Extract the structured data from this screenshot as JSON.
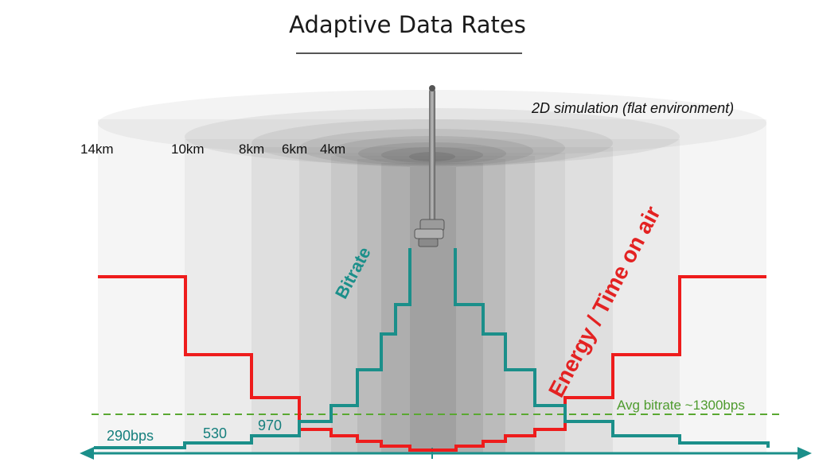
{
  "title": "Adaptive Data Rates",
  "simulation_note": "2D simulation (flat environment)",
  "distance_labels": [
    "14km",
    "10km",
    "8km",
    "6km",
    "4km"
  ],
  "diagram_labels": {
    "bitrate": "Bitrate",
    "energy": "Energy / Time on air",
    "avg_bitrate": "Avg bitrate ~1300bps"
  },
  "rate_labels": [
    "290bps",
    "530",
    "970"
  ],
  "colors": {
    "bitrate_line": "#1b8f8a",
    "energy_line": "#ee1c1c",
    "avg_line": "#5aa832",
    "zone_fill": "#7a7a7a"
  }
}
